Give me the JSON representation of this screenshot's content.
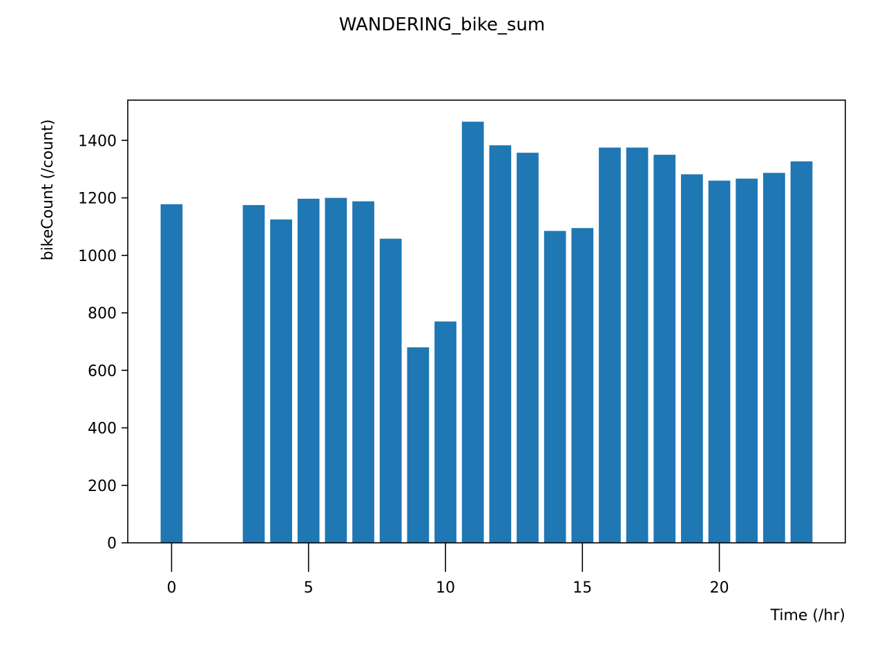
{
  "chart_data": {
    "type": "bar",
    "title": "WANDERING_bike_sum",
    "xlabel": "Time (/hr)",
    "ylabel": "bikeCount (/count)",
    "x": [
      0,
      3,
      4,
      5,
      6,
      7,
      8,
      9,
      10,
      11,
      12,
      13,
      14,
      15,
      16,
      17,
      18,
      19,
      20,
      21,
      22,
      23
    ],
    "values": [
      1178,
      1175,
      1125,
      1197,
      1200,
      1188,
      1058,
      680,
      770,
      1465,
      1383,
      1357,
      1085,
      1095,
      1375,
      1375,
      1350,
      1282,
      1260,
      1267,
      1287,
      1327
    ],
    "xlim": [
      -1.6,
      24.6
    ],
    "ylim": [
      0,
      1540
    ],
    "x_ticks": [
      0,
      5,
      10,
      15,
      20
    ],
    "y_ticks": [
      0,
      200,
      400,
      600,
      800,
      1000,
      1200,
      1400
    ],
    "bar_color": "#1f77b4",
    "grid": false,
    "legend": "none"
  }
}
